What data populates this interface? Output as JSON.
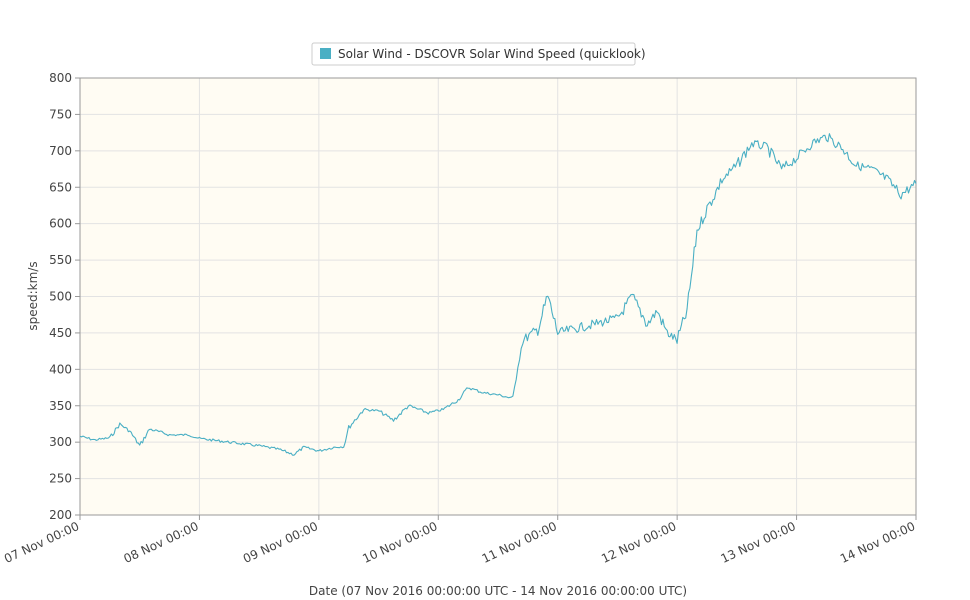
{
  "chart_data": {
    "type": "line",
    "title": "",
    "xlabel": "Date (07 Nov 2016 00:00:00 UTC - 14 Nov 2016 00:00:00 UTC)",
    "ylabel": "speed:km/s",
    "ylim": [
      200,
      800
    ],
    "yticks": [
      200,
      250,
      300,
      350,
      400,
      450,
      500,
      550,
      600,
      650,
      700,
      750,
      800
    ],
    "xlim": [
      "2016-11-07 00:00",
      "2016-11-14 00:00"
    ],
    "xticks": [
      {
        "value": "2016-11-07 00:00",
        "label": "07 Nov 00:00"
      },
      {
        "value": "2016-11-08 00:00",
        "label": "08 Nov 00:00"
      },
      {
        "value": "2016-11-09 00:00",
        "label": "09 Nov 00:00"
      },
      {
        "value": "2016-11-10 00:00",
        "label": "10 Nov 00:00"
      },
      {
        "value": "2016-11-11 00:00",
        "label": "11 Nov 00:00"
      },
      {
        "value": "2016-11-12 00:00",
        "label": "12 Nov 00:00"
      },
      {
        "value": "2016-11-13 00:00",
        "label": "13 Nov 00:00"
      },
      {
        "value": "2016-11-14 00:00",
        "label": "14 Nov 00:00"
      }
    ],
    "grid": true,
    "legend_position": "top-center",
    "plot_background": "#fffcf3",
    "series": [
      {
        "name": "Solar Wind - DSCOVR Solar Wind Speed (quicklook)",
        "color": "#4aafc4",
        "points": [
          [
            "2016-11-07 00:00",
            308
          ],
          [
            "2016-11-07 03:00",
            303
          ],
          [
            "2016-11-07 06:00",
            306
          ],
          [
            "2016-11-07 08:00",
            325
          ],
          [
            "2016-11-07 10:00",
            315
          ],
          [
            "2016-11-07 12:00",
            295
          ],
          [
            "2016-11-07 14:00",
            318
          ],
          [
            "2016-11-07 18:00",
            310
          ],
          [
            "2016-11-07 22:00",
            310
          ],
          [
            "2016-11-08 00:00",
            305
          ],
          [
            "2016-11-08 06:00",
            300
          ],
          [
            "2016-11-08 12:00",
            295
          ],
          [
            "2016-11-08 16:00",
            290
          ],
          [
            "2016-11-08 19:00",
            283
          ],
          [
            "2016-11-08 21:00",
            293
          ],
          [
            "2016-11-09 00:00",
            288
          ],
          [
            "2016-11-09 03:00",
            293
          ],
          [
            "2016-11-09 05:00",
            294
          ],
          [
            "2016-11-09 06:00",
            320
          ],
          [
            "2016-11-09 09:00",
            345
          ],
          [
            "2016-11-09 12:00",
            343
          ],
          [
            "2016-11-09 15:00",
            330
          ],
          [
            "2016-11-09 18:00",
            350
          ],
          [
            "2016-11-09 22:00",
            340
          ],
          [
            "2016-11-10 01:00",
            345
          ],
          [
            "2016-11-10 04:00",
            358
          ],
          [
            "2016-11-10 06:00",
            375
          ],
          [
            "2016-11-10 09:00",
            368
          ],
          [
            "2016-11-10 12:00",
            365
          ],
          [
            "2016-11-10 15:00",
            360
          ],
          [
            "2016-11-10 16:00",
            405
          ],
          [
            "2016-11-10 17:00",
            440
          ],
          [
            "2016-11-10 20:00",
            455
          ],
          [
            "2016-11-10 22:00",
            500
          ],
          [
            "2016-11-11 00:00",
            450
          ],
          [
            "2016-11-11 06:00",
            460
          ],
          [
            "2016-11-11 12:00",
            470
          ],
          [
            "2016-11-11 15:00",
            500
          ],
          [
            "2016-11-11 18:00",
            462
          ],
          [
            "2016-11-11 20:00",
            480
          ],
          [
            "2016-11-11 22:00",
            450
          ],
          [
            "2016-11-12 00:00",
            440
          ],
          [
            "2016-11-12 02:00",
            480
          ],
          [
            "2016-11-12 04:00",
            590
          ],
          [
            "2016-11-12 06:00",
            620
          ],
          [
            "2016-11-12 09:00",
            660
          ],
          [
            "2016-11-12 12:00",
            680
          ],
          [
            "2016-11-12 15:00",
            710
          ],
          [
            "2016-11-12 18:00",
            705
          ],
          [
            "2016-11-12 21:00",
            675
          ],
          [
            "2016-11-13 00:00",
            690
          ],
          [
            "2016-11-13 03:00",
            710
          ],
          [
            "2016-11-13 06:00",
            720
          ],
          [
            "2016-11-13 09:00",
            705
          ],
          [
            "2016-11-13 12:00",
            680
          ],
          [
            "2016-11-13 15:00",
            675
          ],
          [
            "2016-11-13 18:00",
            662
          ],
          [
            "2016-11-13 21:00",
            640
          ],
          [
            "2016-11-14 00:00",
            655
          ]
        ]
      }
    ]
  }
}
